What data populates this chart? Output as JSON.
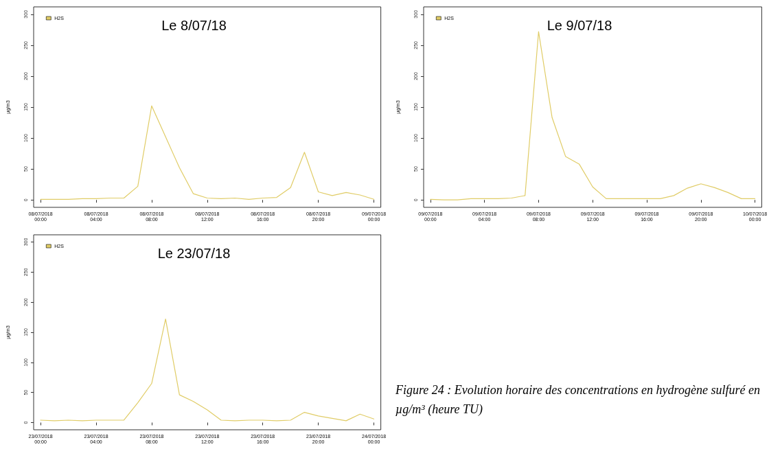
{
  "chart_data": [
    {
      "type": "line",
      "title": "Le 8/07/18",
      "ylabel": "µg/m3",
      "legend": "top left",
      "marker": "none",
      "line_style": "solid",
      "categories": [
        "08/07/2018\n00:00",
        null,
        null,
        null,
        "08/07/2018\n04:00",
        null,
        null,
        null,
        "08/07/2018\n08:00",
        null,
        null,
        null,
        "08/07/2018\n12:00",
        null,
        null,
        null,
        "08/07/2018\n16:00",
        null,
        null,
        null,
        "08/07/2018\n20:00",
        null,
        null,
        null,
        "09/07/2018\n00:00"
      ],
      "ylim": [
        -12,
        312
      ],
      "yticks": [
        0,
        50,
        100,
        150,
        200,
        250,
        300
      ],
      "series": [
        {
          "name": "H2S",
          "color": "#e0cc66",
          "values": [
            1,
            1,
            1,
            2,
            2,
            3,
            3,
            22,
            152,
            102,
            52,
            10,
            3,
            2,
            3,
            1,
            3,
            4,
            20,
            77,
            13,
            7,
            12,
            8,
            1
          ]
        }
      ]
    },
    {
      "type": "line",
      "title": "Le 9/07/18",
      "ylabel": "µg/m3",
      "legend": "top left",
      "marker": "none",
      "line_style": "solid",
      "categories": [
        "09/07/2018\n00:00",
        null,
        null,
        null,
        "09/07/2018\n04:00",
        null,
        null,
        null,
        "09/07/2018\n08:00",
        null,
        null,
        null,
        "09/07/2018\n12:00",
        null,
        null,
        null,
        "09/07/2018\n16:00",
        null,
        null,
        null,
        "09/07/2018\n20:00",
        null,
        null,
        null,
        "10/07/2018\n00:00"
      ],
      "ylim": [
        -12,
        312
      ],
      "yticks": [
        0,
        50,
        100,
        150,
        200,
        250,
        300
      ],
      "series": [
        {
          "name": "H2S",
          "color": "#e0cc66",
          "values": [
            1,
            0,
            0,
            2,
            2,
            2,
            3,
            7,
            272,
            133,
            70,
            58,
            21,
            2,
            2,
            2,
            2,
            2,
            7,
            19,
            26,
            20,
            12,
            2,
            2
          ]
        }
      ]
    },
    {
      "type": "line",
      "title": "Le 23/07/18",
      "ylabel": "µg/m3",
      "legend": "top left",
      "marker": "none",
      "line_style": "solid",
      "categories": [
        "23/07/2018\n00:00",
        null,
        null,
        null,
        "23/07/2018\n04:00",
        null,
        null,
        null,
        "23/07/2018\n08:00",
        null,
        null,
        null,
        "23/07/2018\n12:00",
        null,
        null,
        null,
        "23/07/2018\n16:00",
        null,
        null,
        null,
        "23/07/2018\n20:00",
        null,
        null,
        null,
        "24/07/2018\n00:00"
      ],
      "ylim": [
        -12,
        312
      ],
      "yticks": [
        0,
        50,
        100,
        150,
        200,
        250,
        300
      ],
      "series": [
        {
          "name": "H2S",
          "color": "#e0cc66",
          "values": [
            4,
            3,
            4,
            3,
            4,
            4,
            4,
            33,
            65,
            172,
            46,
            35,
            21,
            4,
            3,
            4,
            4,
            3,
            4,
            17,
            11,
            7,
            3,
            14,
            6
          ]
        }
      ],
      "annotations": [
        "Figure 24 : Evolution horaire des concentrations en hydrogène sulfuré en µg/m³ (heure TU)"
      ]
    }
  ]
}
